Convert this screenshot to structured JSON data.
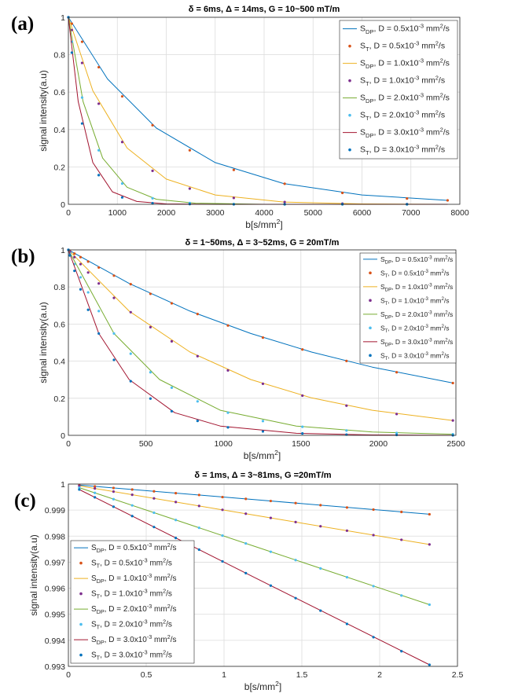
{
  "figure": {
    "panels": [
      {
        "label": "(a)",
        "title": "δ = 6ms, Δ = 14ms, G = 10~500 mT/m"
      },
      {
        "label": "(b)",
        "title": "δ = 1~50ms, Δ = 3~52ms, G = 20mT/m"
      },
      {
        "label": "(c)",
        "title": "δ = 1ms, Δ = 3~81ms, G =20mT/m"
      }
    ],
    "legend": [
      {
        "sym": "S",
        "sub": "DP",
        "text": ", D = 0.5x10",
        "exp": "-3",
        "unit": " mm",
        "unitexp": "2",
        "tail": "/s"
      },
      {
        "sym": "S",
        "sub": "T",
        "text": ",  D = 0.5x10",
        "exp": "-3",
        "unit": " mm",
        "unitexp": "2",
        "tail": "/s"
      },
      {
        "sym": "S",
        "sub": "DP",
        "text": ", D = 1.0x10",
        "exp": "-3",
        "unit": " mm",
        "unitexp": "2",
        "tail": "/s"
      },
      {
        "sym": "S",
        "sub": "T",
        "text": ",  D = 1.0x10",
        "exp": "-3",
        "unit": " mm",
        "unitexp": "2",
        "tail": "/s"
      },
      {
        "sym": "S",
        "sub": "DP",
        "text": ", D = 2.0x10",
        "exp": "-3",
        "unit": " mm",
        "unitexp": "2",
        "tail": "/s"
      },
      {
        "sym": "S",
        "sub": "T",
        "text": ",  D = 2.0x10",
        "exp": "-3",
        "unit": " mm",
        "unitexp": "2",
        "tail": "/s"
      },
      {
        "sym": "S",
        "sub": "DP",
        "text": ", D = 3.0x10",
        "exp": "-3",
        "unit": " mm",
        "unitexp": "2",
        "tail": "/s"
      },
      {
        "sym": "S",
        "sub": "T",
        "text": ",  D = 3.0x10",
        "exp": "-3",
        "unit": " mm",
        "unitexp": "2",
        "tail": "/s"
      }
    ]
  },
  "chart_data": [
    {
      "type": "line",
      "title": "δ = 6ms, Δ = 14ms, G = 10~500 mT/m",
      "xlabel": "b[s/mm2]",
      "ylabel": "signal intensity(a.u)",
      "xlim": [
        0,
        8000
      ],
      "ylim": [
        0,
        1
      ],
      "xticks": [
        "0",
        "1000",
        "2000",
        "3000",
        "4000",
        "5000",
        "6000",
        "7000",
        "8000"
      ],
      "yticks": [
        "0",
        "0.2",
        "0.4",
        "0.6",
        "0.8",
        "1"
      ],
      "grid": true,
      "legend_position": "top-right",
      "D_values": [
        0.0005,
        0.001,
        0.002,
        0.003
      ],
      "series": [
        {
          "name": "SDP, D = 0.5x10-3 mm2/s",
          "style": "line",
          "color": "#0072BD",
          "x": [
            0,
            800,
            1800,
            3000,
            4400,
            6000,
            7750
          ],
          "values": [
            1.0,
            0.67,
            0.407,
            0.223,
            0.111,
            0.05,
            0.021
          ]
        },
        {
          "name": "ST, D = 0.5x10-3 mm2/s",
          "style": "markers",
          "color": "#D95319",
          "x": [
            0,
            70,
            280,
            620,
            1100,
            1720,
            2480,
            3380,
            4420,
            5600,
            6920,
            7750
          ],
          "values": [
            1.0,
            0.966,
            0.869,
            0.733,
            0.577,
            0.423,
            0.289,
            0.184,
            0.11,
            0.061,
            0.031,
            0.021
          ]
        },
        {
          "name": "SDP, D = 1.0x10-3 mm2/s",
          "style": "line",
          "color": "#EDB120",
          "x": [
            0,
            500,
            1200,
            2000,
            3000,
            4400,
            6000,
            7750
          ],
          "values": [
            1.0,
            0.607,
            0.301,
            0.135,
            0.05,
            0.012,
            0.002,
            0.0
          ]
        },
        {
          "name": "ST, D = 1.0x10-3 mm2/s",
          "style": "markers",
          "color": "#7E2F8E",
          "x": [
            0,
            70,
            280,
            620,
            1100,
            1720,
            2480,
            3380,
            4420,
            5600,
            6920
          ],
          "values": [
            1.0,
            0.932,
            0.756,
            0.538,
            0.333,
            0.179,
            0.084,
            0.034,
            0.012,
            0.004,
            0.001
          ]
        },
        {
          "name": "SDP, D = 2.0x10-3 mm2/s",
          "style": "line",
          "color": "#77AC30",
          "x": [
            0,
            300,
            700,
            1200,
            1800,
            2600,
            4000,
            7750
          ],
          "values": [
            1.0,
            0.549,
            0.247,
            0.091,
            0.027,
            0.006,
            0.0,
            0.0
          ]
        },
        {
          "name": "ST, D = 2.0x10-3 mm2/s",
          "style": "markers",
          "color": "#4DBEEE",
          "x": [
            0,
            70,
            280,
            620,
            1100,
            1720,
            2480,
            3380,
            4420,
            5600,
            6920
          ],
          "values": [
            1.0,
            0.869,
            0.571,
            0.289,
            0.111,
            0.032,
            0.007,
            0.001,
            0.0,
            0.0,
            0.0
          ]
        },
        {
          "name": "SDP, D = 3.0x10-3 mm2/s",
          "style": "line",
          "color": "#A2142F",
          "x": [
            0,
            200,
            500,
            900,
            1400,
            2000,
            3000,
            7750
          ],
          "values": [
            1.0,
            0.549,
            0.223,
            0.067,
            0.015,
            0.002,
            0.0,
            0.0
          ]
        },
        {
          "name": "ST, D = 3.0x10-3 mm2/s",
          "style": "markers",
          "color": "#0072BD",
          "x": [
            0,
            70,
            280,
            620,
            1100,
            1720,
            2480,
            3380,
            4420,
            5600,
            6920
          ],
          "values": [
            1.0,
            0.811,
            0.432,
            0.156,
            0.037,
            0.006,
            0.001,
            0.0,
            0.0,
            0.0,
            0.0
          ]
        }
      ]
    },
    {
      "type": "line",
      "title": "δ = 1~50ms, Δ = 3~52ms, G = 20mT/m",
      "xlabel": "b[s/mm2]",
      "ylabel": "signal intensity(a.u)",
      "xlim": [
        0,
        2550
      ],
      "ylim": [
        0,
        1
      ],
      "xticks": [
        "0",
        "500",
        "1000",
        "1500",
        "2000",
        "2500"
      ],
      "yticks": [
        "0",
        "0.2",
        "0.4",
        "0.6",
        "0.8",
        "1"
      ],
      "grid": true,
      "legend_position": "top-right",
      "D_values": [
        0.0005,
        0.001,
        0.002,
        0.003
      ],
      "series": [
        {
          "name": "SDP, D = 0.5x10-3 mm2/s",
          "style": "line",
          "color": "#0072BD",
          "x": [
            0,
            400,
            800,
            1200,
            1600,
            2000,
            2530
          ],
          "values": [
            1.0,
            0.819,
            0.67,
            0.549,
            0.449,
            0.368,
            0.282
          ]
        },
        {
          "name": "ST, D = 0.5x10-3 mm2/s",
          "style": "markers",
          "color": "#D95319",
          "x": [
            0,
            10,
            40,
            80,
            130,
            200,
            300,
            410,
            540,
            680,
            850,
            1050,
            1280,
            1540,
            1830,
            2160,
            2530
          ],
          "values": [
            1.0,
            0.995,
            0.98,
            0.961,
            0.937,
            0.905,
            0.861,
            0.815,
            0.763,
            0.712,
            0.654,
            0.592,
            0.527,
            0.463,
            0.401,
            0.34,
            0.282
          ]
        },
        {
          "name": "SDP, D = 1.0x10-3 mm2/s",
          "style": "line",
          "color": "#EDB120",
          "x": [
            0,
            400,
            800,
            1200,
            1600,
            2000,
            2530
          ],
          "values": [
            1.0,
            0.67,
            0.449,
            0.301,
            0.202,
            0.135,
            0.08
          ]
        },
        {
          "name": "ST, D = 1.0x10-3 mm2/s",
          "style": "markers",
          "color": "#7E2F8E",
          "x": [
            0,
            10,
            40,
            80,
            130,
            200,
            300,
            410,
            540,
            680,
            850,
            1050,
            1280,
            1540,
            1830,
            2160,
            2530
          ],
          "values": [
            1.0,
            0.99,
            0.961,
            0.923,
            0.878,
            0.819,
            0.741,
            0.664,
            0.583,
            0.507,
            0.427,
            0.35,
            0.278,
            0.214,
            0.16,
            0.115,
            0.08
          ]
        },
        {
          "name": "SDP, D = 2.0x10-3 mm2/s",
          "style": "line",
          "color": "#77AC30",
          "x": [
            0,
            300,
            600,
            1000,
            1500,
            2000,
            2530
          ],
          "values": [
            1.0,
            0.549,
            0.301,
            0.135,
            0.05,
            0.018,
            0.006
          ]
        },
        {
          "name": "ST, D = 2.0x10-3 mm2/s",
          "style": "markers",
          "color": "#4DBEEE",
          "x": [
            0,
            10,
            40,
            80,
            130,
            200,
            300,
            410,
            540,
            680,
            850,
            1050,
            1280,
            1540,
            1830,
            2160,
            2530
          ],
          "values": [
            1.0,
            0.98,
            0.923,
            0.852,
            0.771,
            0.67,
            0.549,
            0.44,
            0.34,
            0.257,
            0.183,
            0.122,
            0.077,
            0.046,
            0.026,
            0.013,
            0.006
          ]
        },
        {
          "name": "SDP, D = 3.0x10-3 mm2/s",
          "style": "line",
          "color": "#A2142F",
          "x": [
            0,
            200,
            400,
            700,
            1000,
            1500,
            2000,
            2530
          ],
          "values": [
            1.0,
            0.549,
            0.301,
            0.122,
            0.05,
            0.011,
            0.002,
            0.0
          ]
        },
        {
          "name": "ST, D = 3.0x10-3 mm2/s",
          "style": "markers",
          "color": "#0072BD",
          "x": [
            0,
            10,
            40,
            80,
            130,
            200,
            300,
            410,
            540,
            680,
            850,
            1050,
            1280,
            1540,
            1830,
            2160,
            2530
          ],
          "values": [
            1.0,
            0.97,
            0.887,
            0.787,
            0.677,
            0.549,
            0.407,
            0.292,
            0.198,
            0.13,
            0.078,
            0.043,
            0.021,
            0.01,
            0.004,
            0.002,
            0.0
          ]
        }
      ]
    },
    {
      "type": "line",
      "title": "δ = 1ms, Δ = 3~81ms, G =20mT/m",
      "xlabel": "b[s/mm2]",
      "ylabel": "signal intensity(a.u)",
      "xlim": [
        0,
        2.5
      ],
      "ylim": [
        0.993,
        1.0
      ],
      "xticks": [
        "0",
        "0.5",
        "1",
        "1.5",
        "2",
        "2.5"
      ],
      "yticks": [
        "0.993",
        "0.994",
        "0.995",
        "0.996",
        "0.997",
        "0.998",
        "0.999",
        "1"
      ],
      "grid": true,
      "legend_position": "bottom-left",
      "D_values": [
        0.0005,
        0.001,
        0.002,
        0.003
      ],
      "series": [
        {
          "name": "SDP, D = 0.5x10-3 mm2/s",
          "style": "line",
          "color": "#0072BD",
          "x": [
            0.07,
            1.2,
            2.32
          ],
          "values": [
            0.99996,
            0.9994,
            0.99884
          ]
        },
        {
          "name": "ST, D = 0.5x10-3 mm2/s",
          "style": "markers",
          "color": "#D95319",
          "x": [
            0.07,
            0.17,
            0.29,
            0.41,
            0.55,
            0.69,
            0.84,
            0.99,
            1.14,
            1.3,
            1.46,
            1.62,
            1.79,
            1.96,
            2.14,
            2.32
          ],
          "values": [
            0.99996,
            0.99991,
            0.99985,
            0.99979,
            0.99972,
            0.99965,
            0.99958,
            0.9995,
            0.99943,
            0.99935,
            0.99927,
            0.99919,
            0.9991,
            0.99902,
            0.99893,
            0.99884
          ]
        },
        {
          "name": "SDP, D = 1.0x10-3 mm2/s",
          "style": "line",
          "color": "#EDB120",
          "x": [
            0.07,
            1.2,
            2.32
          ],
          "values": [
            0.99993,
            0.9988,
            0.99768
          ]
        },
        {
          "name": "ST, D = 1.0x10-3 mm2/s",
          "style": "markers",
          "color": "#7E2F8E",
          "x": [
            0.07,
            0.17,
            0.29,
            0.41,
            0.55,
            0.69,
            0.84,
            0.99,
            1.14,
            1.3,
            1.46,
            1.62,
            1.79,
            1.96,
            2.14,
            2.32
          ],
          "values": [
            0.99993,
            0.99983,
            0.99971,
            0.99959,
            0.99945,
            0.99931,
            0.99916,
            0.99901,
            0.99886,
            0.9987,
            0.99854,
            0.99838,
            0.99821,
            0.99804,
            0.99786,
            0.99768
          ]
        },
        {
          "name": "SDP, D = 2.0x10-3 mm2/s",
          "style": "line",
          "color": "#77AC30",
          "x": [
            0.07,
            1.2,
            2.32
          ],
          "values": [
            0.99986,
            0.9976,
            0.99537
          ]
        },
        {
          "name": "ST, D = 2.0x10-3 mm2/s",
          "style": "markers",
          "color": "#4DBEEE",
          "x": [
            0.07,
            0.17,
            0.29,
            0.41,
            0.55,
            0.69,
            0.84,
            0.99,
            1.14,
            1.3,
            1.46,
            1.62,
            1.79,
            1.96,
            2.14,
            2.32
          ],
          "values": [
            0.99986,
            0.99966,
            0.99942,
            0.99918,
            0.9989,
            0.99862,
            0.99832,
            0.99802,
            0.99772,
            0.9974,
            0.99708,
            0.99676,
            0.99642,
            0.99608,
            0.99572,
            0.99537
          ]
        },
        {
          "name": "SDP, D = 3.0x10-3 mm2/s",
          "style": "line",
          "color": "#A2142F",
          "x": [
            0.07,
            1.2,
            2.32
          ],
          "values": [
            0.99979,
            0.9964,
            0.99306
          ]
        },
        {
          "name": "ST, D = 3.0x10-3 mm2/s",
          "style": "markers",
          "color": "#0072BD",
          "x": [
            0.07,
            0.17,
            0.29,
            0.41,
            0.55,
            0.69,
            0.84,
            0.99,
            1.14,
            1.3,
            1.46,
            1.62,
            1.79,
            1.96,
            2.14,
            2.32
          ],
          "values": [
            0.99979,
            0.99949,
            0.99913,
            0.99877,
            0.99835,
            0.99793,
            0.99748,
            0.99703,
            0.99658,
            0.9961,
            0.99562,
            0.99514,
            0.99463,
            0.99412,
            0.99358,
            0.99306
          ]
        }
      ]
    }
  ]
}
